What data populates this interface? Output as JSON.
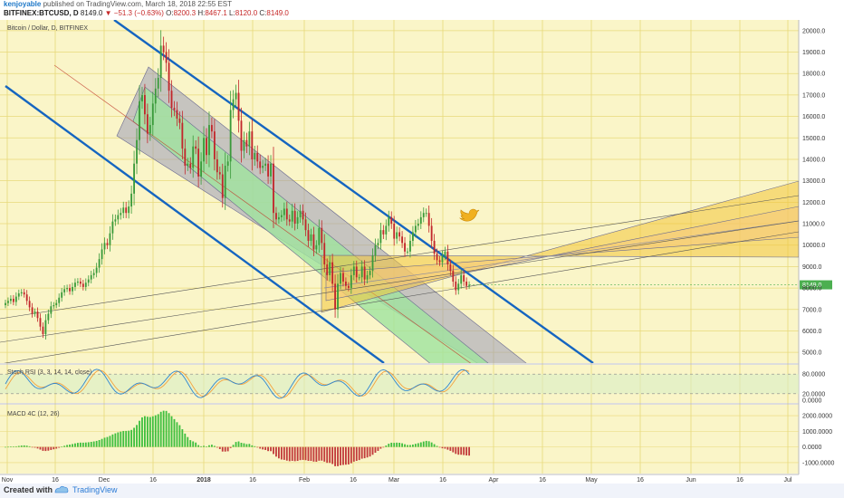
{
  "header": {
    "author": "kenjoyable",
    "published": "published on TradingView.com, March 18, 2018 22:55 EST",
    "symbol": "BITFINEX:BTCUSD, D",
    "last": "8149.0",
    "change": "−51.3 (−0.63%)",
    "o_label": "O:",
    "o_val": "8200.3",
    "h_label": "H:",
    "h_val": "8467.1",
    "l_label": "L:",
    "l_val": "8120.0",
    "c_label": "C:",
    "c_val": "8149.0"
  },
  "footer": {
    "created_with": "Created with",
    "brand": "TradingView"
  },
  "icons": {
    "bird": "twitter-bird-icon",
    "logo": "tradingview-logo-icon"
  },
  "colors": {
    "background": "#faf5c8",
    "grid": "#e8d97a",
    "candle_up": "#3a9a3a",
    "candle_down": "#c2262b",
    "channel_blue": "#1565c0",
    "price_tag": "#4caf50",
    "macd_pos": "#3fbf3f",
    "macd_neg": "#c23b3b",
    "stoch_k": "#2e86d1",
    "stoch_d": "#f5a23c",
    "fork_yellow": "#f3c53a",
    "fork_grey": "#9b9bb8",
    "fork_green": "#9fe39f"
  },
  "chart_data": [
    {
      "type": "candlestick",
      "title": "Bitcoin / Dollar, D, BITFINEX",
      "yaxis_ticks": [
        "20000.0",
        "19000.0",
        "18000.0",
        "17000.0",
        "16000.0",
        "15000.0",
        "14000.0",
        "13000.0",
        "12000.0",
        "11000.0",
        "10000.0",
        "9000.0",
        "8000.0",
        "7000.0",
        "6000.0",
        "5000.0"
      ],
      "ylim": [
        4500,
        20500
      ],
      "x_ticks": [
        "Nov",
        "16",
        "Dec",
        "16",
        "2018",
        "16",
        "Feb",
        "16",
        "Mar",
        "16",
        "Apr",
        "16",
        "May",
        "16",
        "Jun",
        "16",
        "Jul"
      ],
      "last_price_label": "8149.0",
      "close": [
        7300,
        7400,
        7500,
        7350,
        7600,
        7750,
        7800,
        7700,
        7400,
        7100,
        6800,
        6900,
        6600,
        6200,
        5850,
        6500,
        6800,
        7150,
        7200,
        7300,
        7550,
        7800,
        7950,
        8000,
        7850,
        8050,
        8250,
        8300,
        8200,
        8050,
        8250,
        8400,
        8600,
        8700,
        8950,
        9350,
        9800,
        10100,
        10000,
        10550,
        11100,
        11200,
        11400,
        11500,
        11750,
        11500,
        11800,
        12400,
        13800,
        14900,
        16700,
        17000,
        16100,
        15200,
        15600,
        16600,
        17300,
        17800,
        19300,
        19000,
        18500,
        17200,
        16400,
        16300,
        15900,
        15700,
        14500,
        13700,
        13800,
        13600,
        14600,
        14500,
        13200,
        13900,
        15000,
        14200,
        15600,
        15300,
        14000,
        13400,
        13300,
        12200,
        13700,
        13900,
        16300,
        16800,
        17100,
        15800,
        14400,
        14900,
        14600,
        15300,
        14000,
        14300,
        13900,
        13600,
        13700,
        13800,
        13200,
        13800,
        11500,
        11200,
        11300,
        11400,
        11700,
        11200,
        11100,
        11600,
        11000,
        11300,
        11600,
        11200,
        10700,
        10200,
        10500,
        9800,
        10000,
        10800,
        10100,
        9100,
        8600,
        9200,
        8200,
        7000,
        8200,
        8700,
        8300,
        8100,
        8000,
        8600,
        9000,
        8500,
        8500,
        9000,
        8400,
        8600,
        8800,
        9500,
        10000,
        10100,
        10700,
        10500,
        10900,
        11300,
        11000,
        10300,
        10600,
        10400,
        10100,
        9700,
        9700,
        10200,
        10600,
        10900,
        11000,
        11300,
        11500,
        11500,
        10900,
        10200,
        9600,
        9300,
        9200,
        9500,
        9700,
        9100,
        8800,
        8300,
        7900,
        8200,
        8600,
        8300,
        8100,
        8149
      ]
    },
    {
      "type": "line",
      "title": "Stoch RSI (3, 3, 14, 14, close)",
      "yaxis_ticks": [
        "80.0000",
        "20.0000",
        "0.0000"
      ],
      "ylim": [
        0,
        100
      ],
      "bands": [
        80,
        20
      ]
    },
    {
      "type": "bar",
      "title": "MACD 4C (12, 26)",
      "yaxis_ticks": [
        "2000.0000",
        "1000.0000",
        "0.0000",
        "-1000.0000"
      ],
      "ylim": [
        -1700,
        2700
      ]
    }
  ]
}
